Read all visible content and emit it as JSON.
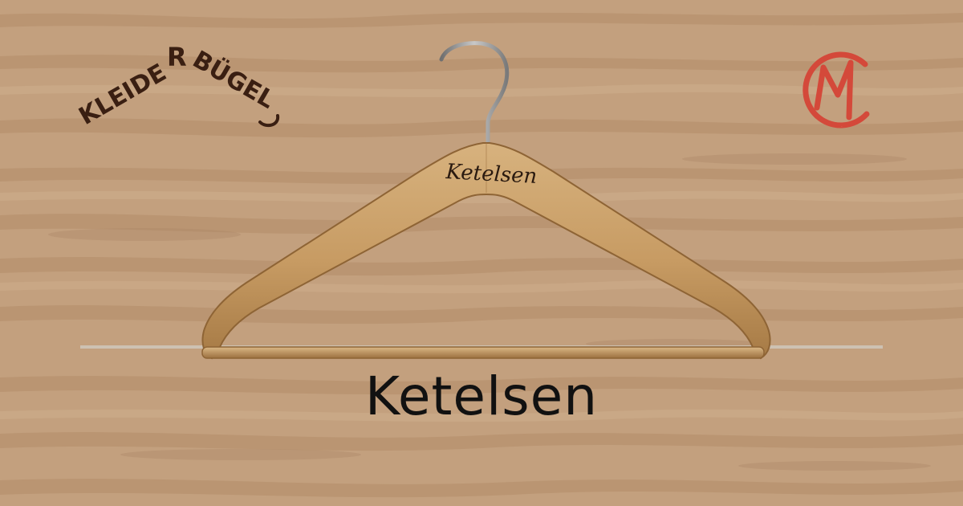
{
  "brand": {
    "logo_line1": "KLEIDE",
    "logo_line2": "BÜGEL",
    "logo_letter": "R",
    "right_logo_letters": "CM"
  },
  "product": {
    "engraving": "Ketelsen",
    "caption": "Ketelsen"
  },
  "colors": {
    "wood_background": "#c3a07e",
    "logo_brown": "#3a1f12",
    "logo_red": "#d4493a",
    "hanger_wood": "#c9a06a",
    "caption_text": "#111111"
  }
}
